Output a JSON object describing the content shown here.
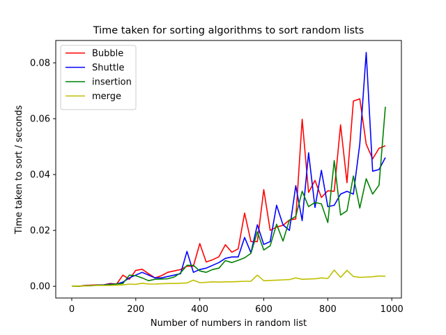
{
  "chart_data": {
    "type": "line",
    "title": "Time taken for sorting algorithms to sort random lists",
    "xlabel": "Number of numbers in random list",
    "ylabel": "Time taken to sort / seconds",
    "xlim": [
      -50,
      1030
    ],
    "ylim": [
      -0.0042,
      0.088
    ],
    "xticks": [
      0,
      200,
      400,
      600,
      800,
      1000
    ],
    "xtick_labels": [
      "0",
      "200",
      "400",
      "600",
      "800",
      "1000"
    ],
    "yticks": [
      0,
      0.02,
      0.04,
      0.06,
      0.08
    ],
    "ytick_labels": [
      "0.00",
      "0.02",
      "0.04",
      "0.06",
      "0.08"
    ],
    "grid": false,
    "legend_position": "top-left",
    "x": [
      0,
      20,
      40,
      60,
      80,
      100,
      120,
      140,
      160,
      180,
      200,
      220,
      240,
      260,
      280,
      300,
      320,
      340,
      360,
      380,
      400,
      420,
      440,
      460,
      480,
      500,
      520,
      540,
      560,
      580,
      600,
      620,
      640,
      660,
      680,
      700,
      720,
      740,
      760,
      780,
      800,
      820,
      840,
      860,
      880,
      900,
      920,
      940,
      960,
      980
    ],
    "series": [
      {
        "name": "Bubble",
        "color": "#ff0000",
        "values": [
          0.0,
          0.0,
          0.0003,
          0.0004,
          0.0005,
          0.0005,
          0.001,
          0.0008,
          0.004,
          0.0025,
          0.0057,
          0.0061,
          0.0045,
          0.003,
          0.0038,
          0.005,
          0.0055,
          0.006,
          0.0072,
          0.0072,
          0.0153,
          0.0087,
          0.0095,
          0.0106,
          0.0149,
          0.0122,
          0.0134,
          0.0262,
          0.016,
          0.016,
          0.0346,
          0.02,
          0.0212,
          0.0218,
          0.0237,
          0.0241,
          0.0598,
          0.0336,
          0.0379,
          0.0318,
          0.0342,
          0.034,
          0.0578,
          0.0371,
          0.0663,
          0.0671,
          0.0509,
          0.0456,
          0.0494,
          0.0503
        ]
      },
      {
        "name": "Shuttle",
        "color": "#0000ff",
        "values": [
          0.0,
          0.0,
          0.0002,
          0.0003,
          0.0004,
          0.0005,
          0.0008,
          0.0008,
          0.0015,
          0.003,
          0.004,
          0.005,
          0.004,
          0.003,
          0.003,
          0.0035,
          0.004,
          0.0045,
          0.0125,
          0.005,
          0.006,
          0.0065,
          0.0075,
          0.0085,
          0.01,
          0.0105,
          0.0105,
          0.0175,
          0.012,
          0.022,
          0.015,
          0.016,
          0.029,
          0.022,
          0.02,
          0.036,
          0.0235,
          0.0478,
          0.0282,
          0.0415,
          0.0285,
          0.029,
          0.033,
          0.034,
          0.033,
          0.051,
          0.0837,
          0.0412,
          0.0418,
          0.0461
        ]
      },
      {
        "name": "insertion",
        "color": "#008000",
        "values": [
          0.0,
          0.0,
          0.0002,
          0.0002,
          0.0004,
          0.0004,
          0.0006,
          0.0008,
          0.001,
          0.004,
          0.0038,
          0.003,
          0.002,
          0.0025,
          0.0026,
          0.0027,
          0.0033,
          0.0048,
          0.0075,
          0.0075,
          0.0055,
          0.005,
          0.006,
          0.0065,
          0.0092,
          0.0085,
          0.0093,
          0.0102,
          0.0118,
          0.0195,
          0.013,
          0.0145,
          0.0222,
          0.0162,
          0.0237,
          0.025,
          0.034,
          0.0285,
          0.03,
          0.0295,
          0.0228,
          0.045,
          0.0255,
          0.027,
          0.0395,
          0.028,
          0.0385,
          0.033,
          0.0362,
          0.0643
        ]
      },
      {
        "name": "merge",
        "color": "#bfbf00",
        "values": [
          0.0,
          0.0001,
          0.0001,
          0.0002,
          0.0003,
          0.0003,
          0.0003,
          0.0004,
          0.0005,
          0.0008,
          0.0007,
          0.0011,
          0.0008,
          0.0008,
          0.0009,
          0.001,
          0.001,
          0.0011,
          0.0012,
          0.0022,
          0.0013,
          0.0014,
          0.0016,
          0.0015,
          0.0016,
          0.0016,
          0.0017,
          0.0018,
          0.0018,
          0.004,
          0.002,
          0.0021,
          0.0022,
          0.0023,
          0.0024,
          0.003,
          0.0025,
          0.0026,
          0.0027,
          0.003,
          0.0028,
          0.0058,
          0.0032,
          0.0057,
          0.0035,
          0.0032,
          0.0033,
          0.0034,
          0.0037,
          0.0036
        ]
      }
    ]
  }
}
